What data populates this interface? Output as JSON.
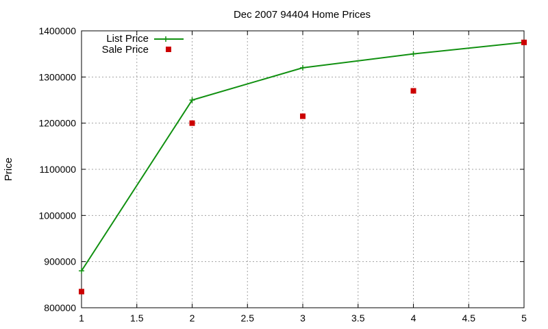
{
  "chart_data": {
    "type": "line",
    "title": "Dec 2007 94404 Home Prices",
    "xlabel": "",
    "ylabel": "Price",
    "xlim": [
      1,
      5
    ],
    "ylim": [
      800000,
      1400000
    ],
    "x_ticks": [
      "1",
      "1.5",
      "2",
      "2.5",
      "3",
      "3.5",
      "4",
      "4.5",
      "5"
    ],
    "y_ticks": [
      "800000",
      "900000",
      "1000000",
      "1100000",
      "1200000",
      "1300000",
      "1400000"
    ],
    "grid": true,
    "legend_position": "top-left",
    "series": [
      {
        "name": "List Price",
        "style": "line-with-plus-markers",
        "color": "#109010",
        "x": [
          1,
          2,
          3,
          4,
          5
        ],
        "values": [
          880000,
          1250000,
          1320000,
          1350000,
          1375000
        ]
      },
      {
        "name": "Sale Price",
        "style": "square-points",
        "color": "#cc0000",
        "x": [
          1,
          2,
          3,
          4,
          5
        ],
        "values": [
          835000,
          1200000,
          1215000,
          1270000,
          1375000
        ]
      }
    ]
  }
}
